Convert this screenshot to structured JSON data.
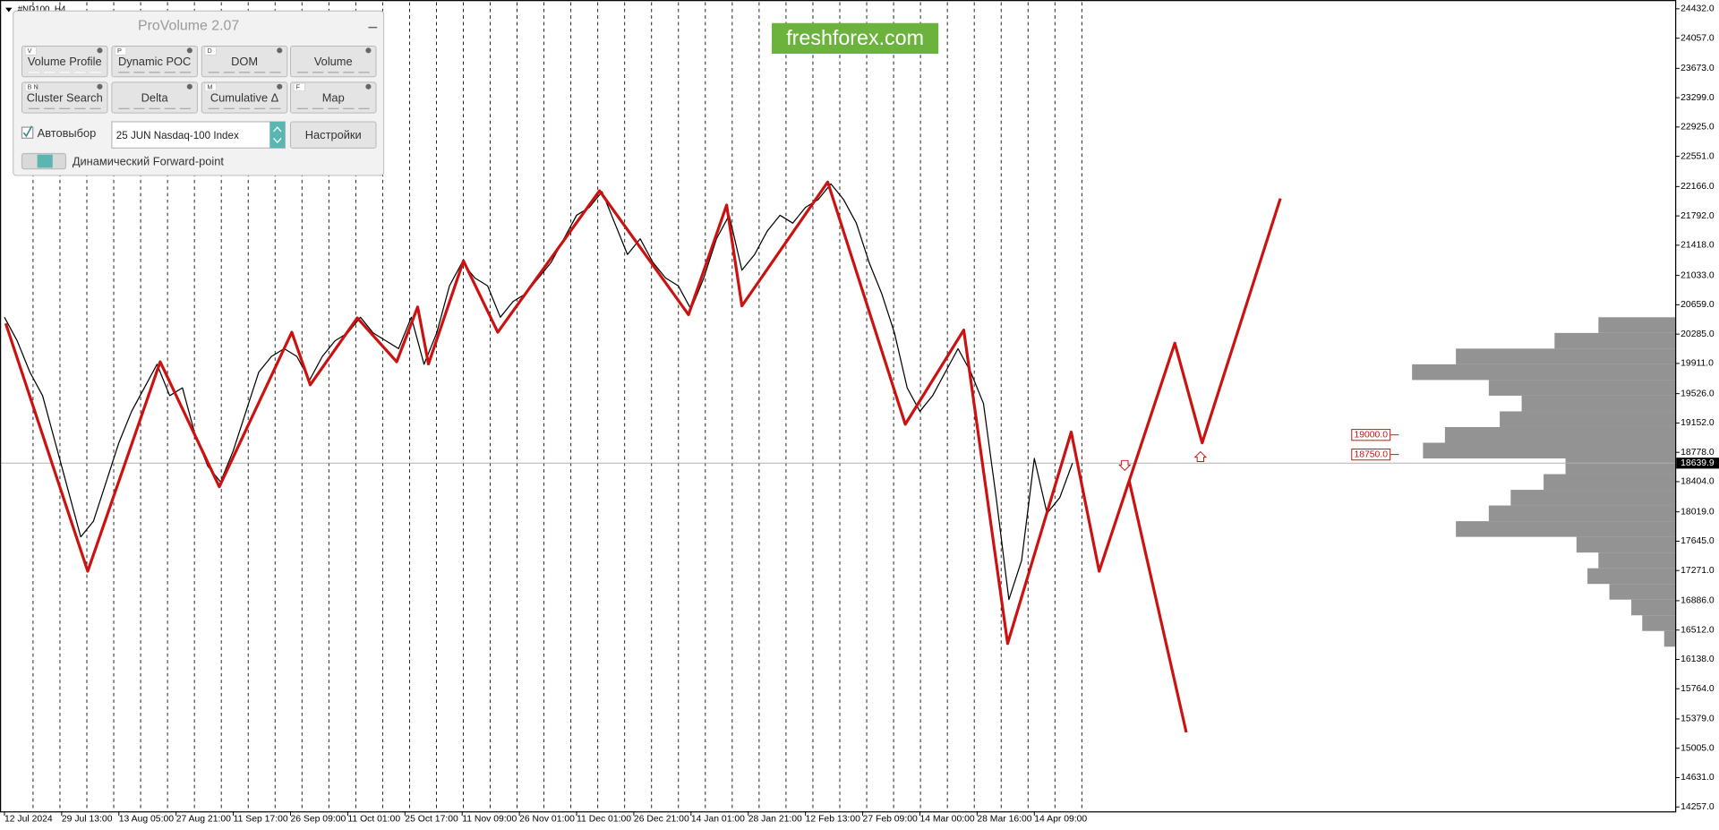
{
  "symbol": "#ND100, H4",
  "watermark": "freshforex.com",
  "panel": {
    "title": "ProVolume 2.07",
    "buttons": [
      {
        "hotkey": "V",
        "label": "Volume Profile"
      },
      {
        "hotkey": "P",
        "label": "Dynamic POC"
      },
      {
        "hotkey": "D",
        "label": "DOM"
      },
      {
        "label": "Volume"
      },
      {
        "hotkey": "B N",
        "label": "Cluster Search"
      },
      {
        "label": "Delta"
      },
      {
        "hotkey": "M",
        "label": "Cumulative Δ"
      },
      {
        "hotkey": "F",
        "label": "Map"
      }
    ],
    "autoselect": "Автовыбор",
    "instrument": "25 JUN Nasdaq-100 Index",
    "settings": "Настройки",
    "forward_point": "Динамический Forward-point"
  },
  "chart_data": {
    "type": "line",
    "xlim": [
      -7,
      2628
    ],
    "ylim": [
      14201,
      24516
    ],
    "xticks": [
      {
        "value": 0,
        "label": "12 Jul 2024"
      },
      {
        "value": 90,
        "label": "29 Jul 13:00"
      },
      {
        "value": 180,
        "label": "13 Aug 05:00"
      },
      {
        "value": 270,
        "label": "27 Aug 21:00"
      },
      {
        "value": 360,
        "label": "11 Sep 17:00"
      },
      {
        "value": 450,
        "label": "26 Sep 09:00"
      },
      {
        "value": 540,
        "label": "11 Oct 01:00"
      },
      {
        "value": 630,
        "label": "25 Oct 17:00"
      },
      {
        "value": 720,
        "label": "11 Nov 09:00"
      },
      {
        "value": 810,
        "label": "26 Nov 01:00"
      },
      {
        "value": 900,
        "label": "11 Dec 01:00"
      },
      {
        "value": 990,
        "label": "26 Dec 21:00"
      },
      {
        "value": 1080,
        "label": "14 Jan 01:00"
      },
      {
        "value": 1170,
        "label": "28 Jan 21:00"
      },
      {
        "value": 1260,
        "label": "12 Feb 13:00"
      },
      {
        "value": 1350,
        "label": "27 Feb 09:00"
      },
      {
        "value": 1440,
        "label": "14 Mar 00:00"
      },
      {
        "value": 1530,
        "label": "28 Mar 16:00"
      },
      {
        "value": 1620,
        "label": "14 Apr 09:00"
      }
    ],
    "yticks": [
      {
        "value": 24432,
        "label": "24432.0"
      },
      {
        "value": 24057,
        "label": "24057.0"
      },
      {
        "value": 23673,
        "label": "23673.0"
      },
      {
        "value": 23299,
        "label": "23299.0"
      },
      {
        "value": 22925,
        "label": "22925.0"
      },
      {
        "value": 22551,
        "label": "22551.0"
      },
      {
        "value": 22166,
        "label": "22166.0"
      },
      {
        "value": 21792,
        "label": "21792.0"
      },
      {
        "value": 21418,
        "label": "21418.0"
      },
      {
        "value": 21033,
        "label": "21033.0"
      },
      {
        "value": 20659,
        "label": "20659.0"
      },
      {
        "value": 20285,
        "label": "20285.0"
      },
      {
        "value": 19911,
        "label": "19911.0"
      },
      {
        "value": 19526,
        "label": "19526.0"
      },
      {
        "value": 19152,
        "label": "19152.0"
      },
      {
        "value": 18778,
        "label": "18778.0"
      },
      {
        "value": 18404,
        "label": "18404.0"
      },
      {
        "value": 18019,
        "label": "18019.0"
      },
      {
        "value": 17645,
        "label": "17645.0"
      },
      {
        "value": 17271,
        "label": "17271.0"
      },
      {
        "value": 16886,
        "label": "16886.0"
      },
      {
        "value": 16512,
        "label": "16512.0"
      },
      {
        "value": 16138,
        "label": "16138.0"
      },
      {
        "value": 15764,
        "label": "15764.0"
      },
      {
        "value": 15379,
        "label": "15379.0"
      },
      {
        "value": 15005,
        "label": "15005.0"
      },
      {
        "value": 14631,
        "label": "14631.0"
      },
      {
        "value": 14257,
        "label": "14257.0"
      }
    ],
    "series": [
      {
        "color": "#000000",
        "x": [
          0,
          20,
          40,
          60,
          80,
          100,
          120,
          140,
          160,
          180,
          200,
          220,
          240,
          260,
          280,
          300,
          320,
          340,
          360,
          380,
          400,
          420,
          440,
          460,
          480,
          500,
          520,
          540,
          560,
          580,
          600,
          620,
          640,
          660,
          680,
          700,
          720,
          740,
          760,
          780,
          800,
          820,
          840,
          860,
          880,
          900,
          920,
          940,
          960,
          980,
          1000,
          1020,
          1040,
          1060,
          1080,
          1100,
          1120,
          1140,
          1160,
          1180,
          1200,
          1220,
          1240,
          1260,
          1280,
          1300,
          1320,
          1340,
          1360,
          1380,
          1400,
          1420,
          1440,
          1460,
          1480,
          1500,
          1520,
          1540,
          1560,
          1580,
          1600,
          1620,
          1640,
          1660,
          1680
        ],
        "values": [
          20500,
          20200,
          19800,
          19500,
          18900,
          18300,
          17700,
          17900,
          18400,
          18900,
          19300,
          19600,
          19900,
          19500,
          19600,
          19000,
          18600,
          18400,
          18800,
          19300,
          19800,
          20000,
          20100,
          20000,
          19700,
          20000,
          20200,
          20300,
          20500,
          20300,
          20200,
          20100,
          20500,
          19900,
          20300,
          20900,
          21200,
          21000,
          20900,
          20500,
          20700,
          20800,
          21000,
          21200,
          21500,
          21800,
          21900,
          22100,
          21700,
          21300,
          21500,
          21200,
          21000,
          20900,
          20600,
          21000,
          21500,
          21800,
          21100,
          21300,
          21600,
          21800,
          21700,
          21900,
          22000,
          22200,
          22000,
          21700,
          21200,
          20800,
          20300,
          19600,
          19300,
          19500,
          19800,
          20100,
          19800,
          19400,
          18200,
          16900,
          17400,
          18700,
          18000,
          18200,
          18640
        ]
      },
      {
        "color": "#cc1111",
        "x": [
          2,
          131,
          245,
          338,
          452,
          481,
          555,
          617,
          650,
          667,
          722,
          776,
          936,
          1076,
          1136,
          1160,
          1295,
          1417,
          1509,
          1578,
          1678,
          1722,
          1841,
          1884,
          2007
        ],
        "values": [
          20421,
          17262,
          19932,
          18339,
          20309,
          19638,
          20491,
          19932,
          20631,
          19904,
          21218,
          20309,
          22112,
          20533,
          21930,
          20645,
          22224,
          19135,
          20337,
          16340,
          19037,
          17262,
          20169,
          18898,
          22014
        ]
      },
      {
        "color": "#cc1111",
        "x": [
          1769,
          1859
        ],
        "values": [
          18422,
          15208
        ]
      }
    ],
    "levels": [
      {
        "value": 19000,
        "label": "19000.0"
      },
      {
        "value": 18750,
        "label": "18750.0"
      }
    ],
    "last_price": {
      "value": 18639.9,
      "label": "18639.9"
    },
    "volume_profile": {
      "color": "#808080",
      "prices": [
        20400,
        20200,
        20000,
        19800,
        19600,
        19400,
        19200,
        19000,
        18800,
        18600,
        18400,
        18200,
        18000,
        17800,
        17600,
        17400,
        17200,
        17000,
        16800,
        16600,
        16400
      ],
      "values": [
        70,
        110,
        200,
        240,
        170,
        140,
        160,
        210,
        230,
        100,
        120,
        150,
        170,
        200,
        90,
        70,
        80,
        60,
        40,
        30,
        10
      ]
    }
  }
}
